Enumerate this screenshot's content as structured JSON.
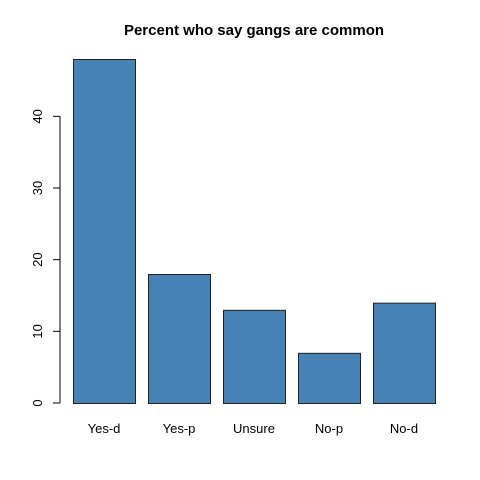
{
  "chart_data": {
    "type": "bar",
    "title": "Percent who say gangs are common",
    "xlabel": "",
    "ylabel": "",
    "categories": [
      "Yes-d",
      "Yes-p",
      "Unsure",
      "No-p",
      "No-d"
    ],
    "values": [
      48,
      18,
      13,
      7,
      14
    ],
    "ylim": [
      0,
      48
    ],
    "yticks": [
      0,
      10,
      20,
      30,
      40
    ],
    "grid": false,
    "bar_color": "#4682b4",
    "bar_edge_color": "#222222"
  }
}
